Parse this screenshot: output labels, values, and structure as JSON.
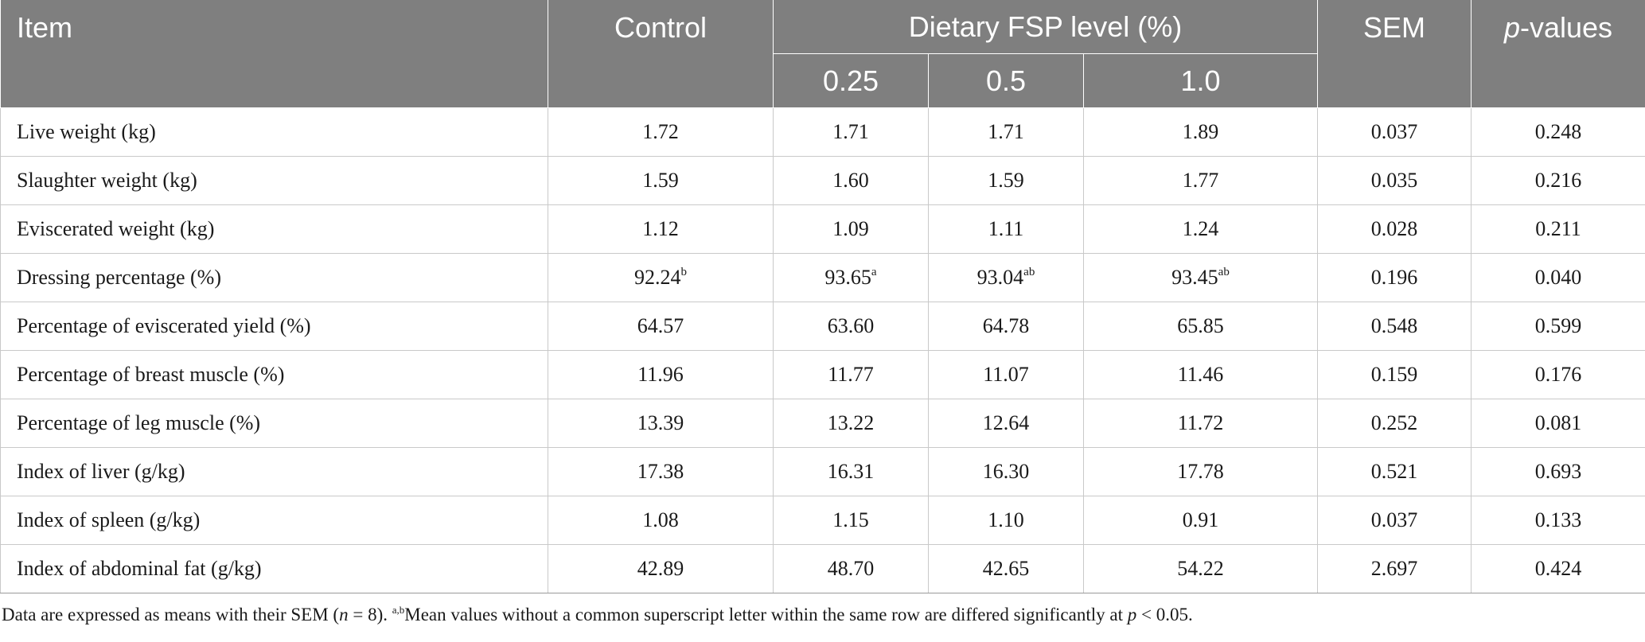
{
  "table": {
    "headers": {
      "item": "Item",
      "control": "Control",
      "group": "Dietary FSP level (%)",
      "levels": [
        "0.25",
        "0.5",
        "1.0"
      ],
      "sem": "SEM",
      "p_italic": "p",
      "p_rest": "-values"
    },
    "rows": [
      {
        "label": "Live weight (kg)",
        "control": "1.72",
        "c1": "1.71",
        "c2": "1.71",
        "c3": "1.89",
        "sem": "0.037",
        "p": "0.248"
      },
      {
        "label": "Slaughter weight (kg)",
        "control": "1.59",
        "c1": "1.60",
        "c2": "1.59",
        "c3": "1.77",
        "sem": "0.035",
        "p": "0.216"
      },
      {
        "label": "Eviscerated weight (kg)",
        "control": "1.12",
        "c1": "1.09",
        "c2": "1.11",
        "c3": "1.24",
        "sem": "0.028",
        "p": "0.211"
      },
      {
        "label": "Dressing percentage (%)",
        "control": "92.24",
        "control_sup": "b",
        "c1": "93.65",
        "c1_sup": "a",
        "c2": "93.04",
        "c2_sup": "ab",
        "c3": "93.45",
        "c3_sup": "ab",
        "sem": "0.196",
        "p": "0.040"
      },
      {
        "label": "Percentage of eviscerated yield (%)",
        "control": "64.57",
        "c1": "63.60",
        "c2": "64.78",
        "c3": "65.85",
        "sem": "0.548",
        "p": "0.599"
      },
      {
        "label": "Percentage of breast muscle (%)",
        "control": "11.96",
        "c1": "11.77",
        "c2": "11.07",
        "c3": "11.46",
        "sem": "0.159",
        "p": "0.176"
      },
      {
        "label": "Percentage of leg muscle (%)",
        "control": "13.39",
        "c1": "13.22",
        "c2": "12.64",
        "c3": "11.72",
        "sem": "0.252",
        "p": "0.081"
      },
      {
        "label": "Index of liver (g/kg)",
        "control": "17.38",
        "c1": "16.31",
        "c2": "16.30",
        "c3": "17.78",
        "sem": "0.521",
        "p": "0.693"
      },
      {
        "label": "Index of spleen (g/kg)",
        "control": "1.08",
        "c1": "1.15",
        "c2": "1.10",
        "c3": "0.91",
        "sem": "0.037",
        "p": "0.133"
      },
      {
        "label": "Index of abdominal fat (g/kg)",
        "control": "42.89",
        "c1": "48.70",
        "c2": "42.65",
        "c3": "54.22",
        "sem": "2.697",
        "p": "0.424"
      }
    ]
  },
  "footnote": {
    "t1": "Data are expressed as means with their SEM (",
    "n_italic": "n",
    "t2": " = 8). ",
    "sup": "a,b",
    "t3": "Mean values without a common superscript letter within the same row are differed significantly at ",
    "p_italic": "p",
    "t4": " < 0.05."
  },
  "colors": {
    "header_bg": "#7f7f7f",
    "header_text": "#ffffff",
    "grid": "#c9c9c9"
  }
}
